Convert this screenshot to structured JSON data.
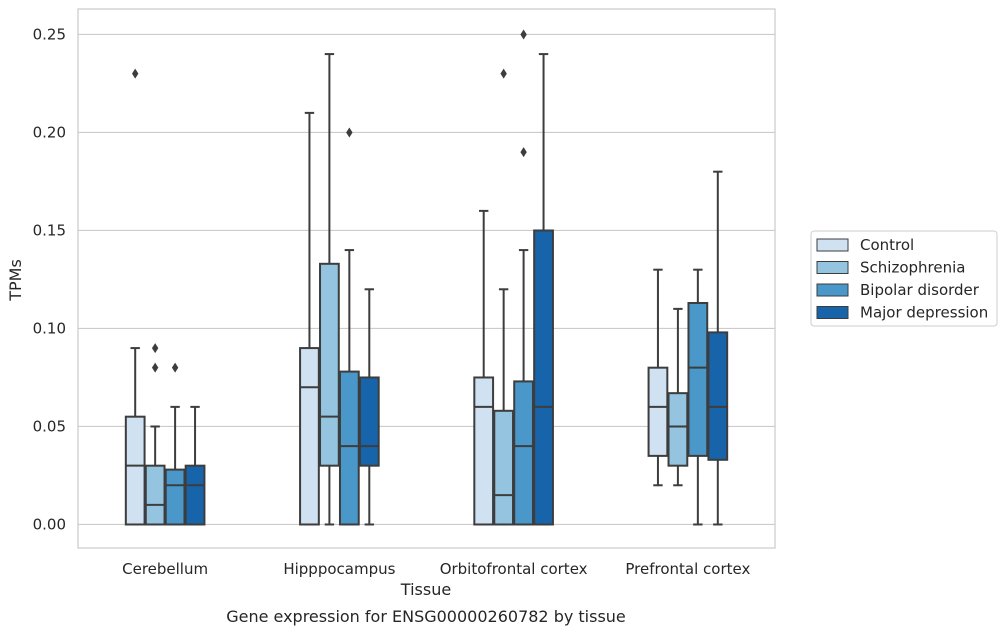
{
  "chart_data": {
    "type": "boxplot",
    "xlabel": "Tissue",
    "ylabel": "TPMs",
    "caption": "Gene expression for ENSG00000260782 by tissue",
    "ylim": [
      -0.012,
      0.263
    ],
    "yticks": [
      0.0,
      0.05,
      0.1,
      0.15,
      0.2,
      0.25
    ],
    "ytick_labels": [
      "0.00",
      "0.05",
      "0.10",
      "0.15",
      "0.20",
      "0.25"
    ],
    "grid": true,
    "legend_position": "right",
    "categories": [
      "Cerebellum",
      "Hipppocampus",
      "Orbitofrontal cortex",
      "Prefrontal cortex"
    ],
    "series": [
      {
        "name": "Control",
        "color": "#d0e1f2",
        "boxes": [
          {
            "whislo": 0.0,
            "q1": 0.0,
            "med": 0.03,
            "q3": 0.055,
            "whishi": 0.09,
            "fliers": [
              0.23
            ]
          },
          {
            "whislo": 0.0,
            "q1": 0.0,
            "med": 0.07,
            "q3": 0.09,
            "whishi": 0.21,
            "fliers": []
          },
          {
            "whislo": 0.0,
            "q1": 0.0,
            "med": 0.06,
            "q3": 0.075,
            "whishi": 0.16,
            "fliers": []
          },
          {
            "whislo": 0.02,
            "q1": 0.035,
            "med": 0.06,
            "q3": 0.08,
            "whishi": 0.13,
            "fliers": []
          }
        ]
      },
      {
        "name": "Schizophrenia",
        "color": "#94c4df",
        "boxes": [
          {
            "whislo": 0.0,
            "q1": 0.0,
            "med": 0.01,
            "q3": 0.03,
            "whishi": 0.05,
            "fliers": [
              0.08,
              0.09
            ]
          },
          {
            "whislo": 0.0,
            "q1": 0.03,
            "med": 0.055,
            "q3": 0.133,
            "whishi": 0.24,
            "fliers": []
          },
          {
            "whislo": 0.0,
            "q1": 0.0,
            "med": 0.015,
            "q3": 0.058,
            "whishi": 0.12,
            "fliers": [
              0.23
            ]
          },
          {
            "whislo": 0.02,
            "q1": 0.03,
            "med": 0.05,
            "q3": 0.067,
            "whishi": 0.11,
            "fliers": []
          }
        ]
      },
      {
        "name": "Bipolar disorder",
        "color": "#4a98c9",
        "boxes": [
          {
            "whislo": 0.0,
            "q1": 0.0,
            "med": 0.02,
            "q3": 0.028,
            "whishi": 0.06,
            "fliers": [
              0.08
            ]
          },
          {
            "whislo": 0.0,
            "q1": 0.0,
            "med": 0.04,
            "q3": 0.078,
            "whishi": 0.14,
            "fliers": [
              0.2
            ]
          },
          {
            "whislo": 0.0,
            "q1": 0.0,
            "med": 0.04,
            "q3": 0.073,
            "whishi": 0.14,
            "fliers": [
              0.19,
              0.25
            ]
          },
          {
            "whislo": 0.0,
            "q1": 0.035,
            "med": 0.08,
            "q3": 0.113,
            "whishi": 0.13,
            "fliers": []
          }
        ]
      },
      {
        "name": "Major depression",
        "color": "#1764ab",
        "boxes": [
          {
            "whislo": 0.0,
            "q1": 0.0,
            "med": 0.02,
            "q3": 0.03,
            "whishi": 0.06,
            "fliers": []
          },
          {
            "whislo": 0.0,
            "q1": 0.03,
            "med": 0.04,
            "q3": 0.075,
            "whishi": 0.12,
            "fliers": []
          },
          {
            "whislo": 0.0,
            "q1": 0.0,
            "med": 0.06,
            "q3": 0.15,
            "whishi": 0.24,
            "fliers": []
          },
          {
            "whislo": 0.0,
            "q1": 0.033,
            "med": 0.06,
            "q3": 0.098,
            "whishi": 0.18,
            "fliers": []
          }
        ]
      }
    ]
  }
}
